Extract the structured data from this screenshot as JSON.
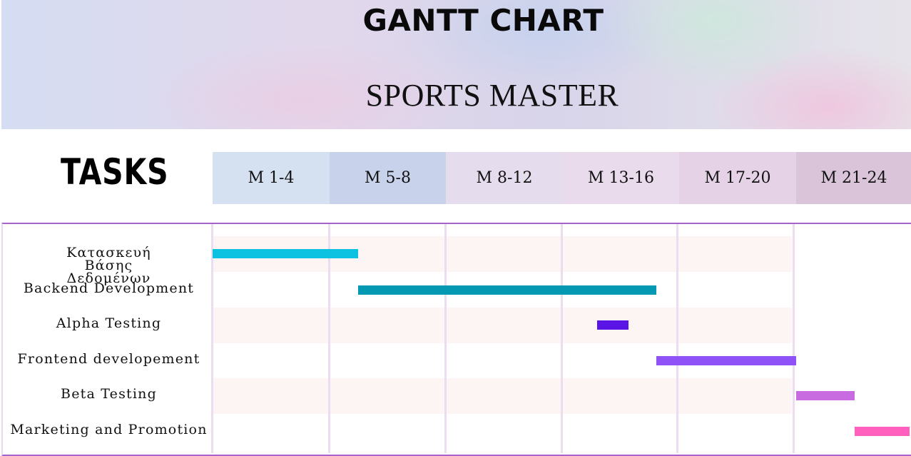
{
  "header": {
    "title": "GANTT CHART",
    "subtitle": "SPORTS MASTER",
    "tasks_heading": "TASKS"
  },
  "chart_data": {
    "type": "gantt",
    "periods": [
      {
        "label": "M 1-4",
        "start": 1,
        "end": 4,
        "color": "#d5e0f1"
      },
      {
        "label": "M 5-8",
        "start": 5,
        "end": 8,
        "color": "#c8d2ea"
      },
      {
        "label": "M 8-12",
        "start": 8,
        "end": 12,
        "color": "#e5dcee"
      },
      {
        "label": "M 13-16",
        "start": 13,
        "end": 16,
        "color": "#e9daec"
      },
      {
        "label": "M 17-20",
        "start": 17,
        "end": 20,
        "color": "#e5d2e6"
      },
      {
        "label": "M 21-24",
        "start": 21,
        "end": 24,
        "color": "#d9c4da"
      }
    ],
    "tasks": [
      {
        "name": "Κατασκευή Βάσης Δεδομένων",
        "start": 0,
        "end": 5,
        "color": "#0dc1e0"
      },
      {
        "name": "Backend Development",
        "start": 5,
        "end": 15.25,
        "color": "#0598b3"
      },
      {
        "name": "Alpha Testing",
        "start": 13.2,
        "end": 14.3,
        "color": "#5a14e6"
      },
      {
        "name": "Frontend developement",
        "start": 15.25,
        "end": 20.05,
        "color": "#8e52f6"
      },
      {
        "name": "Beta Testing",
        "start": 20.05,
        "end": 22.05,
        "color": "#c86ae0"
      },
      {
        "name": "Marketing and Promotion",
        "start": 22.05,
        "end": 24,
        "color": "#ff5fbd"
      }
    ]
  }
}
